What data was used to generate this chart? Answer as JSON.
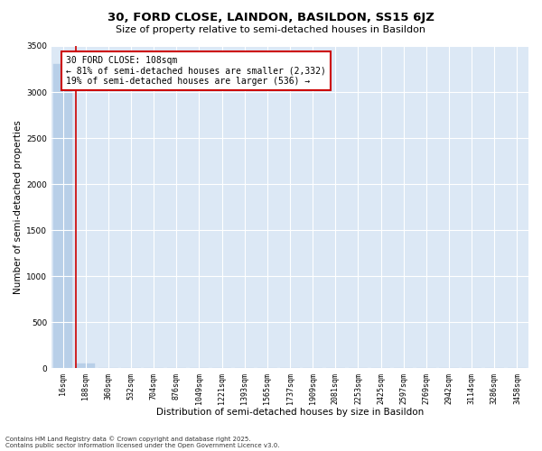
{
  "title1": "30, FORD CLOSE, LAINDON, BASILDON, SS15 6JZ",
  "title2": "Size of property relative to semi-detached houses in Basildon",
  "xlabel": "Distribution of semi-detached houses by size in Basildon",
  "ylabel": "Number of semi-detached properties",
  "categories": [
    "16sqm",
    "188sqm",
    "360sqm",
    "532sqm",
    "704sqm",
    "876sqm",
    "1049sqm",
    "1221sqm",
    "1393sqm",
    "1565sqm",
    "1737sqm",
    "1909sqm",
    "2081sqm",
    "2253sqm",
    "2425sqm",
    "2597sqm",
    "2769sqm",
    "2942sqm",
    "3114sqm",
    "3286sqm",
    "3458sqm"
  ],
  "bar_heights": [
    3300,
    50,
    0,
    0,
    0,
    0,
    0,
    0,
    0,
    0,
    0,
    0,
    0,
    0,
    0,
    0,
    0,
    0,
    0,
    0,
    0
  ],
  "bar_color": "#b8cfe8",
  "vline_color": "#cc0000",
  "vline_x": 0.58,
  "ylim": [
    0,
    3500
  ],
  "yticks": [
    0,
    500,
    1000,
    1500,
    2000,
    2500,
    3000,
    3500
  ],
  "annotation_line1": "30 FORD CLOSE: 108sqm",
  "annotation_line2": "← 81% of semi-detached houses are smaller (2,332)",
  "annotation_line3": "19% of semi-detached houses are larger (536) →",
  "annotation_box_color": "#cc0000",
  "plot_bg_color": "#dce8f5",
  "footnote1": "Contains HM Land Registry data © Crown copyright and database right 2025.",
  "footnote2": "Contains public sector information licensed under the Open Government Licence v3.0.",
  "title1_fontsize": 9.5,
  "title2_fontsize": 8,
  "tick_fontsize": 6,
  "ylabel_fontsize": 7.5,
  "xlabel_fontsize": 7.5,
  "annotation_fontsize": 7,
  "footnote_fontsize": 5
}
